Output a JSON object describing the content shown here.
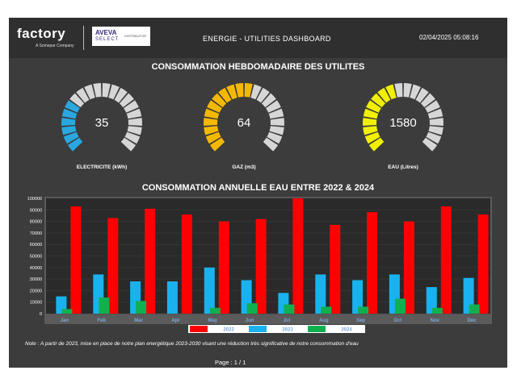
{
  "header": {
    "brand": "factory",
    "brand_sub": "A Somepar Company",
    "partner_name": "AVEVA",
    "partner_line": "SELECT",
    "partner_tag": "DISTRIBUTOR",
    "title": "ENERGIE - UTILITIES DASHBOARD",
    "timestamp": "02/04/2025 05:08:16"
  },
  "weekly": {
    "title": "CONSOMMATION HEBDOMADAIRE DES UTILITES",
    "gauges": [
      {
        "label": "ELECTRICITE (kWh)",
        "value": "35",
        "fraction": 0.3,
        "color": "#29a8e0"
      },
      {
        "label": "GAZ (m3)",
        "value": "64",
        "fraction": 0.55,
        "color": "#f5b800"
      },
      {
        "label": "EAU (Litres)",
        "value": "1580",
        "fraction": 0.45,
        "color": "#f0f000"
      }
    ]
  },
  "annual": {
    "title": "CONSOMMATION ANNUELLE EAU ENTRE 2022 & 2024"
  },
  "chart_data": {
    "type": "bar",
    "title": "CONSOMMATION ANNUELLE EAU ENTRE 2022 & 2024",
    "categories": [
      "Jan",
      "Feb",
      "Mar",
      "Apr",
      "May",
      "Jun",
      "Jul",
      "Aug",
      "Sep",
      "Oct",
      "Nov",
      "Dec"
    ],
    "series": [
      {
        "name": "2022",
        "color": "#ff0000",
        "values": [
          93000,
          83000,
          91000,
          86000,
          80000,
          82000,
          100000,
          77000,
          88000,
          80000,
          93000,
          86000
        ]
      },
      {
        "name": "2023",
        "color": "#1ab2ee",
        "values": [
          15000,
          34000,
          28000,
          28000,
          40000,
          29000,
          18000,
          34000,
          29000,
          34000,
          23000,
          31000
        ]
      },
      {
        "name": "2024",
        "color": "#11b04f",
        "values": [
          4000,
          14000,
          11000,
          0,
          5000,
          9000,
          8000,
          6000,
          6000,
          13000,
          5000,
          8000
        ]
      }
    ],
    "ylim": [
      0,
      100000
    ],
    "yticks": [
      "100000",
      "90000",
      "80000",
      "70000",
      "60000",
      "50000",
      "40000",
      "30000",
      "20000",
      "10000",
      "0"
    ],
    "legend_position": "bottom-center"
  },
  "footer": {
    "note": "Note : A partir de 2023, mise en place de notre plan energétique 2023-2030 visant une réduction très significative de notre consommation d'eau",
    "page": "Page :  1  /  1"
  }
}
